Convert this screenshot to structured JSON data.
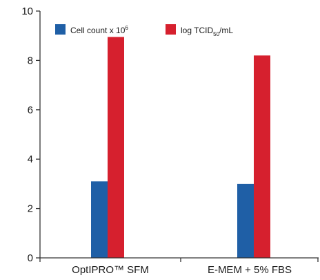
{
  "chart_data": {
    "type": "bar",
    "categories": [
      "OptIPRO™ SFM",
      "E-MEM + 5% FBS"
    ],
    "series": [
      {
        "name": "Cell count x 10⁶",
        "legend_main": "Cell count x 10",
        "legend_sup": "6",
        "color": "#1f5fa6",
        "values": [
          3.1,
          3.0
        ]
      },
      {
        "name": "log TCID50/mL",
        "legend_main": "log TCID",
        "legend_sub": "50",
        "legend_tail": "/mL",
        "color": "#d6202e",
        "values": [
          8.95,
          8.2
        ]
      }
    ],
    "ylim": [
      0,
      10
    ],
    "yticks": [
      "0",
      "2",
      "4",
      "6",
      "8",
      "10"
    ],
    "grid": false,
    "legend_position": "top"
  }
}
